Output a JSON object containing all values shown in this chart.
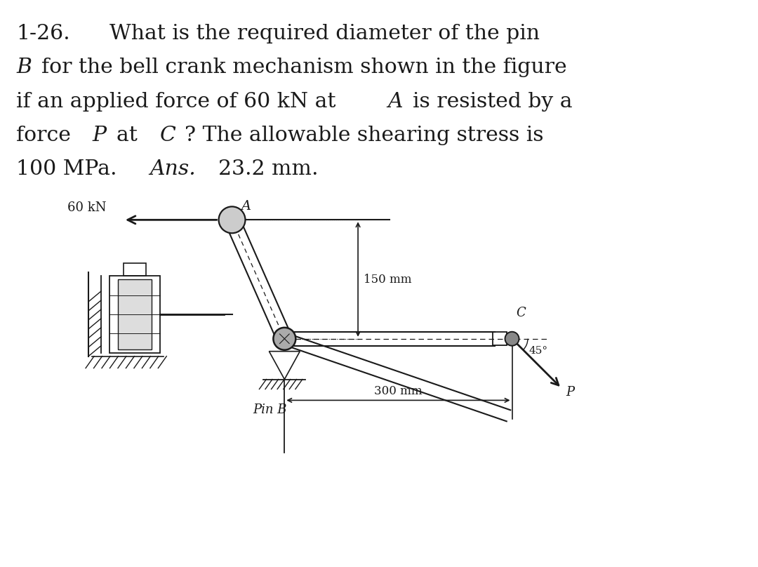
{
  "bg_color": "#ffffff",
  "diagram_color": "#1a1a1a",
  "fig_width": 10.8,
  "fig_height": 8.08,
  "dpi": 100,
  "label_60kN": "60 kN",
  "label_A": "A",
  "label_150mm": "150 mm",
  "label_300mm": "300 mm",
  "label_PinB": "Pin B",
  "label_C": "C",
  "label_P": "P",
  "label_45": "45°"
}
